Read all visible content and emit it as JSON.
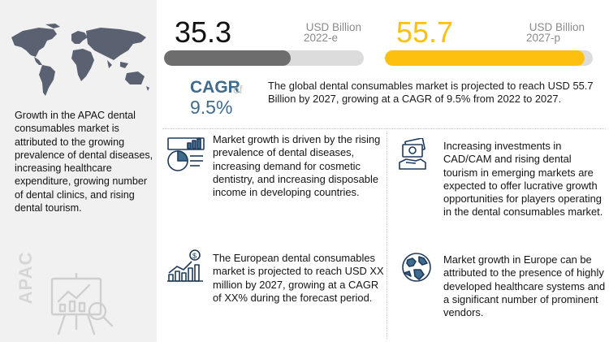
{
  "left_panel": {
    "description": "Growth in the APAC dental consumables market is attributed to the growing prevalence of dental diseases, increasing healthcare expenditure, growing number of dental clinics, and rising dental tourism.",
    "region_label": "APAC"
  },
  "metric_2022": {
    "value": "35.3",
    "unit": "USD Billion",
    "year": "2022-e",
    "bar_fraction": 0.634,
    "bar_color": "#6d6d6d"
  },
  "metric_2027": {
    "value": "55.7",
    "unit": "USD Billion",
    "year": "2027-p",
    "bar_fraction": 0.96,
    "bar_color": "#fec00f"
  },
  "cagr": {
    "label": "CAGR",
    "of": "of",
    "value": "9.5%"
  },
  "summary": "The global dental consumables market is projected to reach USD 55.7 Billion by 2027, growing at a CAGR of 9.5% from 2022 to 2027.",
  "cards": {
    "drivers": {
      "icon": "analytics-pie-icon",
      "text": "Market growth is driven by the rising prevalence of dental diseases, increasing demand for cosmetic dentistry, and increasing disposable income in developing countries."
    },
    "opportunities": {
      "icon": "money-hand-icon",
      "text": "Increasing investments in CAD/CAM and rising dental tourism in emerging markets are expected to offer lucrative growth opportunities for players operating in the dental consumables market."
    },
    "europe_projection": {
      "icon": "dollar-bar-chart-icon",
      "text": "The European dental consumables market is projected to reach USD  XX million by 2027, growing at a CAGR of XX% during the forecast period."
    },
    "europe_growth": {
      "icon": "globe-icon",
      "text": "Market growth in Europe can be attributed to the presence of highly developed healthcare systems and a significant number of prominent vendors."
    }
  },
  "colors": {
    "accent_blue": "#3f6b8f",
    "accent_yellow": "#fec00f",
    "icon_navy": "#1f3b5c"
  }
}
